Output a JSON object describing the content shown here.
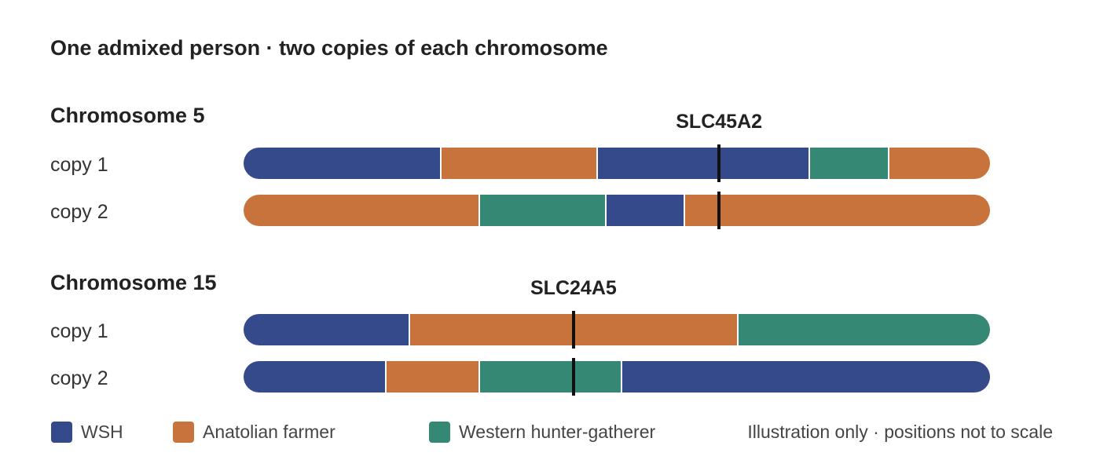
{
  "title": "One admixed person · two copies of each chromosome",
  "colors": {
    "wsh": "#354A8A",
    "anatolian": "#C8733C",
    "whg": "#358873"
  },
  "chromosomes": [
    {
      "name": "Chromosome 5",
      "gene": "SLC45A2",
      "copies": [
        {
          "label": "copy 1",
          "segments": [
            {
              "ancestry": "wsh",
              "start": 0.0,
              "end": 0.263
            },
            {
              "ancestry": "anatolian",
              "start": 0.263,
              "end": 0.473
            },
            {
              "ancestry": "wsh",
              "start": 0.473,
              "end": 0.757
            },
            {
              "ancestry": "whg",
              "start": 0.757,
              "end": 0.863
            },
            {
              "ancestry": "anatolian",
              "start": 0.863,
              "end": 1.0
            }
          ]
        },
        {
          "label": "copy 2",
          "segments": [
            {
              "ancestry": "anatolian",
              "start": 0.0,
              "end": 0.315
            },
            {
              "ancestry": "whg",
              "start": 0.315,
              "end": 0.484
            },
            {
              "ancestry": "wsh",
              "start": 0.484,
              "end": 0.589
            },
            {
              "ancestry": "anatolian",
              "start": 0.589,
              "end": 1.0
            }
          ]
        }
      ],
      "marker_position": 0.637
    },
    {
      "name": "Chromosome 15",
      "gene": "SLC24A5",
      "copies": [
        {
          "label": "copy 1",
          "segments": [
            {
              "ancestry": "wsh",
              "start": 0.0,
              "end": 0.221
            },
            {
              "ancestry": "anatolian",
              "start": 0.221,
              "end": 0.661
            },
            {
              "ancestry": "whg",
              "start": 0.661,
              "end": 1.0
            }
          ]
        },
        {
          "label": "copy 2",
          "segments": [
            {
              "ancestry": "wsh",
              "start": 0.0,
              "end": 0.189
            },
            {
              "ancestry": "anatolian",
              "start": 0.189,
              "end": 0.315
            },
            {
              "ancestry": "whg",
              "start": 0.315,
              "end": 0.505
            },
            {
              "ancestry": "wsh",
              "start": 0.505,
              "end": 1.0
            }
          ]
        }
      ],
      "marker_position": 0.442
    }
  ],
  "legend": [
    {
      "key": "wsh",
      "label": "WSH"
    },
    {
      "key": "anatolian",
      "label": "Anatolian farmer"
    },
    {
      "key": "whg",
      "label": "Western hunter-gatherer"
    }
  ],
  "note": "Illustration only · positions not to scale"
}
